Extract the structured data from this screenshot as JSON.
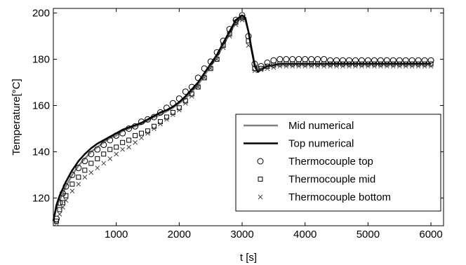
{
  "chart_data": {
    "type": "line",
    "title": "",
    "xlabel": "t [s]",
    "ylabel": "Temperature[°C]",
    "xlim": [
      0,
      6200
    ],
    "ylim": [
      108,
      202
    ],
    "xticks": [
      1000,
      2000,
      3000,
      4000,
      5000,
      6000
    ],
    "yticks": [
      120,
      140,
      160,
      180,
      200
    ],
    "grid": false,
    "legend_position": "bottom-right",
    "series": [
      {
        "name": "Mid numerical",
        "style": "line",
        "color": "#808080",
        "x": [
          0,
          50,
          100,
          200,
          300,
          400,
          500,
          600,
          700,
          800,
          900,
          1000,
          1100,
          1200,
          1300,
          1400,
          1500,
          1600,
          1700,
          1800,
          1900,
          2000,
          2100,
          2200,
          2300,
          2400,
          2500,
          2600,
          2700,
          2800,
          2900,
          3000,
          3050,
          3100,
          3150,
          3200,
          3250,
          3300,
          3400,
          3500,
          3600,
          3700,
          3800,
          4000,
          4500,
          5000,
          5500,
          6000
        ],
        "y": [
          110,
          116,
          119,
          125,
          130,
          134,
          137,
          140,
          142,
          144,
          146,
          147,
          149,
          150,
          151,
          152,
          153.5,
          155,
          156,
          157.5,
          159,
          161,
          163,
          166,
          169,
          173,
          177,
          181,
          186,
          191,
          196,
          198,
          197,
          192,
          185,
          178,
          175.5,
          176,
          177,
          177.5,
          178,
          178,
          178,
          178,
          178,
          178,
          178,
          178
        ]
      },
      {
        "name": "Top numerical",
        "style": "line",
        "color": "#000000",
        "x": [
          0,
          50,
          100,
          200,
          300,
          400,
          500,
          600,
          700,
          800,
          900,
          1000,
          1100,
          1200,
          1300,
          1400,
          1500,
          1600,
          1700,
          1800,
          1900,
          2000,
          2100,
          2200,
          2300,
          2400,
          2500,
          2600,
          2700,
          2800,
          2900,
          3000,
          3050,
          3100,
          3150,
          3200,
          3250,
          3300,
          3400,
          3500,
          3600,
          3700,
          3800,
          4000,
          4500,
          5000,
          5500,
          6000
        ],
        "y": [
          110,
          117,
          121,
          127,
          132,
          136,
          139,
          141.5,
          143.5,
          145,
          146.5,
          148,
          149.5,
          150.5,
          151.5,
          152.5,
          154,
          155.5,
          157,
          158,
          159.5,
          161.5,
          164,
          167,
          170,
          174,
          178,
          182,
          187,
          192,
          197,
          199,
          198,
          192,
          184,
          177,
          174.5,
          175.5,
          177,
          177.5,
          178,
          178,
          178,
          178,
          178,
          178,
          178,
          178
        ]
      },
      {
        "name": "Thermocouple top",
        "style": "marker",
        "marker": "circle",
        "color": "#000000",
        "x": [
          50,
          100,
          150,
          200,
          300,
          400,
          500,
          600,
          700,
          800,
          900,
          1000,
          1100,
          1200,
          1300,
          1400,
          1500,
          1600,
          1700,
          1800,
          1900,
          2000,
          2100,
          2200,
          2300,
          2400,
          2500,
          2600,
          2700,
          2800,
          2900,
          3000,
          3100,
          3200,
          3300,
          3400,
          3500,
          3600,
          3700,
          3800,
          3900,
          4000,
          4100,
          4200,
          4300,
          4400,
          4500,
          4600,
          4700,
          4800,
          4900,
          5000,
          5100,
          5200,
          5300,
          5400,
          5500,
          5600,
          5700,
          5800,
          5900,
          6000
        ],
        "y": [
          111,
          118,
          122,
          125,
          130,
          133,
          136,
          139,
          141,
          143,
          145,
          147,
          148,
          150,
          151,
          153,
          154,
          155,
          157,
          159,
          161,
          163,
          166,
          168,
          172,
          176,
          179,
          183,
          188,
          193,
          197,
          199,
          190,
          178,
          177,
          178.5,
          179.5,
          180,
          180,
          180,
          180,
          180,
          180,
          180,
          180,
          179.5,
          179.5,
          179.5,
          179.5,
          179.5,
          179.5,
          179.5,
          179.5,
          179.5,
          179.5,
          179.5,
          179.5,
          179.5,
          179.5,
          179.5,
          179.5,
          179.5
        ]
      },
      {
        "name": "Thermocouple mid",
        "style": "marker",
        "marker": "square",
        "color": "#000000",
        "x": [
          50,
          100,
          150,
          200,
          300,
          400,
          500,
          600,
          700,
          800,
          900,
          1000,
          1100,
          1200,
          1300,
          1400,
          1500,
          1600,
          1700,
          1800,
          1900,
          2000,
          2100,
          2200,
          2300,
          2400,
          2500,
          2600,
          2700,
          2800,
          2900,
          3000,
          3100,
          3200,
          3300,
          3400,
          3500,
          3600,
          3700,
          3800,
          3900,
          4000,
          4100,
          4200,
          4300,
          4400,
          4500,
          4600,
          4700,
          4800,
          4900,
          5000,
          5100,
          5200,
          5300,
          5400,
          5500,
          5600,
          5700,
          5800,
          5900,
          6000
        ],
        "y": [
          110,
          115,
          118,
          121,
          126,
          129,
          132,
          135,
          137,
          139,
          141,
          142,
          144,
          145,
          147,
          148,
          149,
          151,
          153,
          155,
          157,
          159,
          162,
          165,
          168,
          172,
          176,
          180,
          186,
          191,
          196,
          198,
          188,
          176,
          176,
          177,
          177.5,
          178,
          178,
          178,
          178,
          178,
          178,
          178,
          178,
          178,
          178,
          178,
          178,
          178,
          178,
          178,
          178,
          178,
          178,
          178,
          178,
          178,
          178,
          178,
          178,
          178
        ]
      },
      {
        "name": "Thermocouple bottom",
        "style": "marker",
        "marker": "x",
        "color": "#404040",
        "x": [
          50,
          100,
          150,
          200,
          300,
          400,
          500,
          600,
          700,
          800,
          900,
          1000,
          1100,
          1200,
          1300,
          1400,
          1500,
          1600,
          1700,
          1800,
          1900,
          2000,
          2100,
          2200,
          2300,
          2400,
          2500,
          2600,
          2700,
          2800,
          2900,
          3000,
          3100,
          3200,
          3300,
          3400,
          3500,
          3600,
          3700,
          3800,
          3900,
          4000,
          4100,
          4200,
          4300,
          4400,
          4500,
          4600,
          4700,
          4800,
          4900,
          5000,
          5100,
          5200,
          5300,
          5400,
          5500,
          5600,
          5700,
          5800,
          5900,
          6000
        ],
        "y": [
          109,
          113,
          116,
          119,
          123,
          126,
          129,
          131,
          133,
          135,
          137,
          139,
          141,
          142,
          144,
          146,
          148,
          150,
          152,
          154,
          156,
          158,
          161,
          164,
          168,
          172,
          176,
          180,
          185,
          190,
          195,
          197,
          186,
          175,
          175.5,
          176,
          176.5,
          177,
          177,
          177,
          177,
          177,
          177,
          177,
          177,
          177,
          177,
          177,
          177,
          177,
          177,
          177,
          177,
          177,
          177,
          177,
          177,
          177,
          177,
          177,
          177,
          177
        ]
      }
    ]
  }
}
